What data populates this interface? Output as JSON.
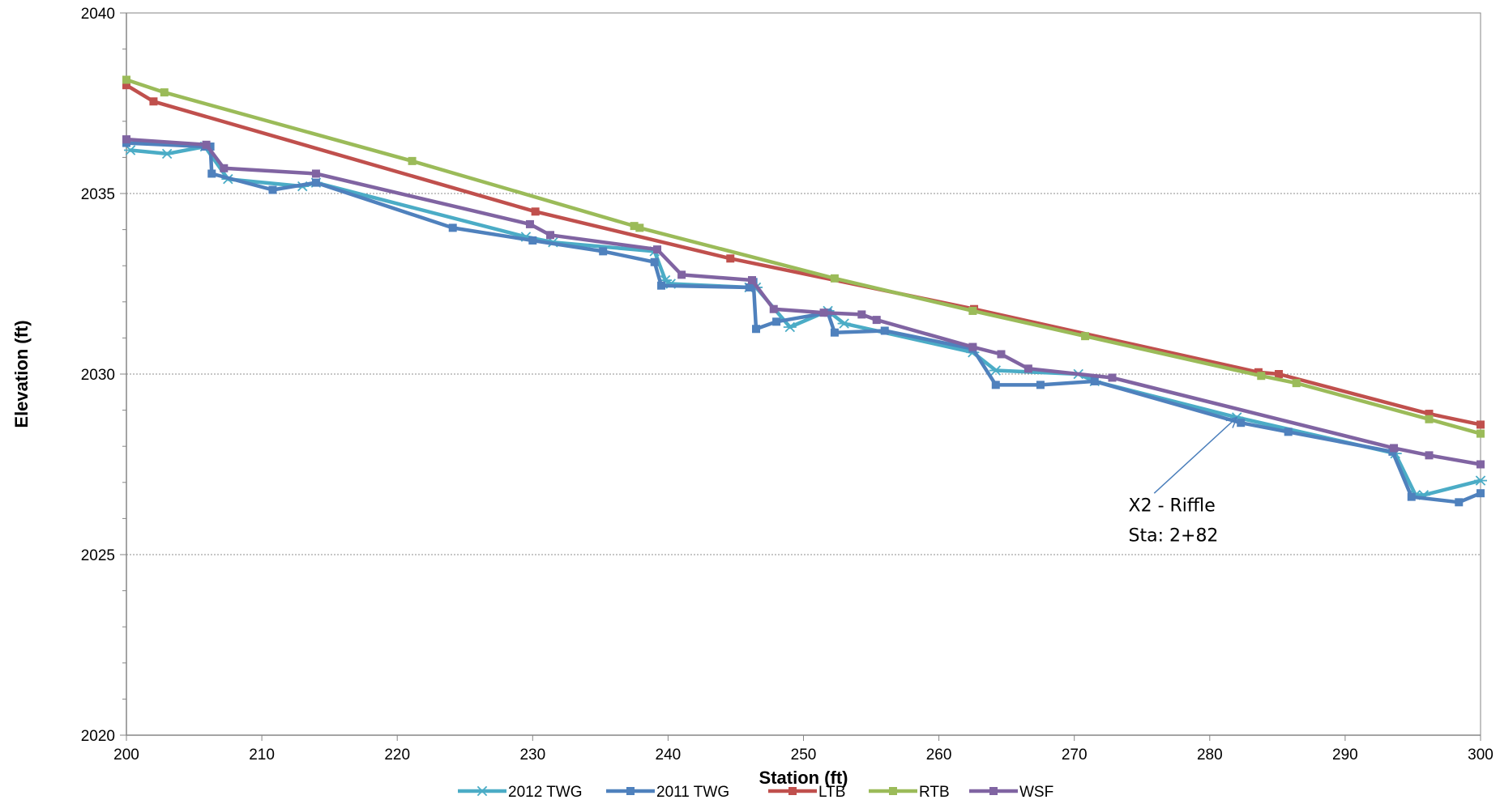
{
  "chart_data": {
    "type": "line",
    "title": "",
    "xlabel": "Station (ft)",
    "ylabel": "Elevation (ft)",
    "xlim": [
      200,
      300
    ],
    "ylim": [
      2020,
      2040
    ],
    "xticks": [
      200,
      210,
      220,
      230,
      240,
      250,
      260,
      270,
      280,
      290,
      300
    ],
    "yticks": [
      2020,
      2025,
      2030,
      2035,
      2040
    ],
    "grid": "horizontal dotted at major y ticks",
    "legend_position": "bottom",
    "annotations": [
      {
        "lines": [
          "X2 - Riffle",
          "Sta: 2+82"
        ],
        "arrow_to": [
          282.0,
          2028.8
        ],
        "arrow_from": [
          275.9,
          2026.7
        ],
        "text_at": [
          274.0,
          2026.2
        ]
      }
    ],
    "series": [
      {
        "name": "2012 TWG",
        "color": "#4BACC6",
        "marker": "star",
        "x": [
          200.3,
          203.0,
          205.8,
          207.5,
          213.0,
          214.0,
          229.5,
          231.5,
          239.0,
          239.8,
          240.2,
          246.0,
          246.5,
          249.0,
          251.8,
          253.0,
          262.5,
          264.2,
          270.3,
          271.5,
          282.0,
          293.7,
          295.2,
          295.8,
          300.0
        ],
        "y": [
          2036.2,
          2036.1,
          2036.3,
          2035.4,
          2035.2,
          2035.3,
          2033.8,
          2033.65,
          2033.4,
          2032.6,
          2032.5,
          2032.4,
          2032.4,
          2031.3,
          2031.75,
          2031.4,
          2030.6,
          2030.1,
          2030.0,
          2029.8,
          2028.8,
          2027.8,
          2026.65,
          2026.65,
          2027.05
        ]
      },
      {
        "name": "2011 TWG",
        "color": "#4F81BD",
        "marker": "square",
        "x": [
          200.0,
          205.8,
          206.2,
          206.3,
          210.8,
          214.0,
          224.1,
          230.0,
          235.2,
          239.0,
          239.5,
          246.0,
          246.3,
          246.5,
          248.0,
          251.8,
          252.3,
          256.0,
          262.5,
          264.2,
          267.5,
          271.5,
          282.3,
          285.8,
          293.5,
          294.9,
          298.4,
          300.0
        ],
        "y": [
          2036.4,
          2036.3,
          2036.3,
          2035.55,
          2035.1,
          2035.3,
          2034.05,
          2033.7,
          2033.4,
          2033.1,
          2032.45,
          2032.4,
          2032.55,
          2031.25,
          2031.45,
          2031.7,
          2031.15,
          2031.2,
          2030.7,
          2029.7,
          2029.7,
          2029.8,
          2028.65,
          2028.4,
          2027.85,
          2026.6,
          2026.45,
          2026.7
        ]
      },
      {
        "name": "LTB",
        "color": "#C0504D",
        "marker": "square",
        "x": [
          200.0,
          202.0,
          230.2,
          244.6,
          262.6,
          283.6,
          285.1,
          296.2,
          300.0
        ],
        "y": [
          2038.0,
          2037.55,
          2034.5,
          2033.2,
          2031.8,
          2030.05,
          2030.0,
          2028.9,
          2028.6
        ]
      },
      {
        "name": "RTB",
        "color": "#9BBB59",
        "marker": "square",
        "x": [
          200.0,
          202.8,
          221.1,
          237.5,
          237.9,
          252.3,
          262.5,
          270.8,
          283.8,
          286.4,
          296.2,
          300.0
        ],
        "y": [
          2038.15,
          2037.8,
          2035.9,
          2034.1,
          2034.05,
          2032.65,
          2031.75,
          2031.05,
          2029.95,
          2029.75,
          2028.75,
          2028.35
        ]
      },
      {
        "name": "WSF",
        "color": "#8064A2",
        "marker": "square",
        "x": [
          200.0,
          205.9,
          207.2,
          214.0,
          229.8,
          231.3,
          239.2,
          241.0,
          246.2,
          247.8,
          251.5,
          254.3,
          255.4,
          262.5,
          264.6,
          266.6,
          272.8,
          293.6,
          296.2,
          300.0
        ],
        "y": [
          2036.5,
          2036.35,
          2035.7,
          2035.55,
          2034.15,
          2033.85,
          2033.45,
          2032.75,
          2032.6,
          2031.8,
          2031.7,
          2031.65,
          2031.5,
          2030.75,
          2030.55,
          2030.15,
          2029.9,
          2027.95,
          2027.75,
          2027.5
        ]
      }
    ]
  }
}
